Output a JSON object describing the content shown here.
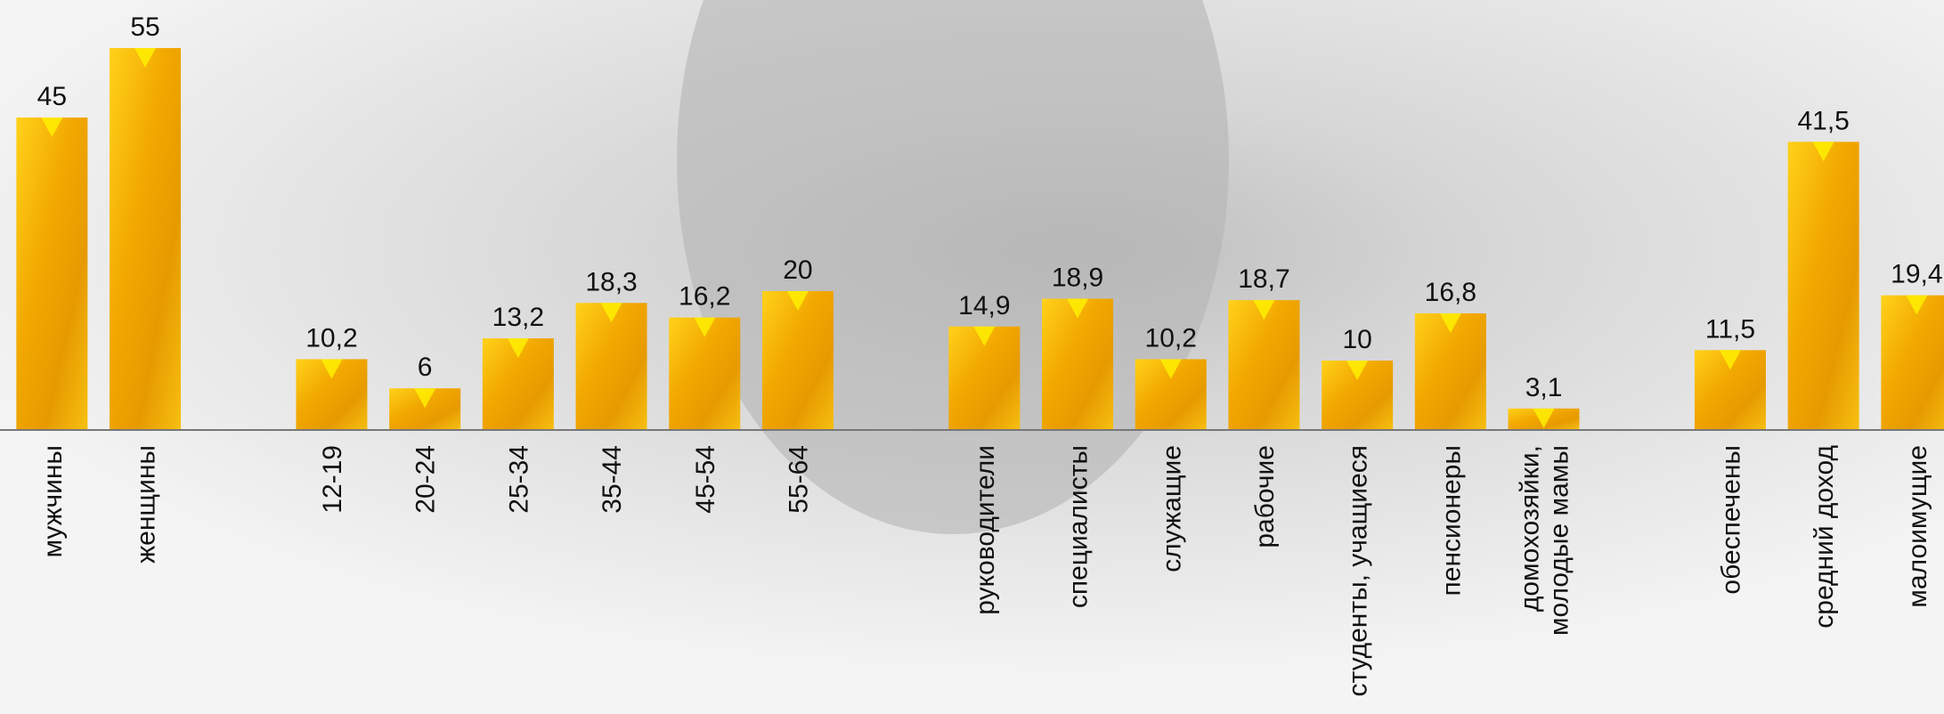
{
  "chart_data": {
    "type": "bar",
    "categories": [
      "мужчины",
      "женщины",
      null,
      "12-19",
      "20-24",
      "25-34",
      "35-44",
      "45-54",
      "55-64",
      null,
      "руководители",
      "специалисты",
      "служащие",
      "рабочие",
      "студенты, учащиеся",
      "пенсионеры",
      "домохозяйки,\nмолодые мамы",
      null,
      "обеспечены",
      "средний доход",
      "малоимущие"
    ],
    "values": [
      45,
      55,
      null,
      10.2,
      6,
      13.2,
      18.3,
      16.2,
      20,
      null,
      14.9,
      18.9,
      10.2,
      18.7,
      10,
      16.8,
      3.1,
      null,
      11.5,
      41.5,
      19.4
    ],
    "value_labels": [
      "45",
      "55",
      null,
      "10,2",
      "6",
      "13,2",
      "18,3",
      "16,2",
      "20",
      null,
      "14,9",
      "18,9",
      "10,2",
      "18,7",
      "10",
      "16,8",
      "3,1",
      null,
      "11,5",
      "41,5",
      "19,4"
    ],
    "color": "#f0a500",
    "ylim": [
      0,
      60
    ]
  }
}
